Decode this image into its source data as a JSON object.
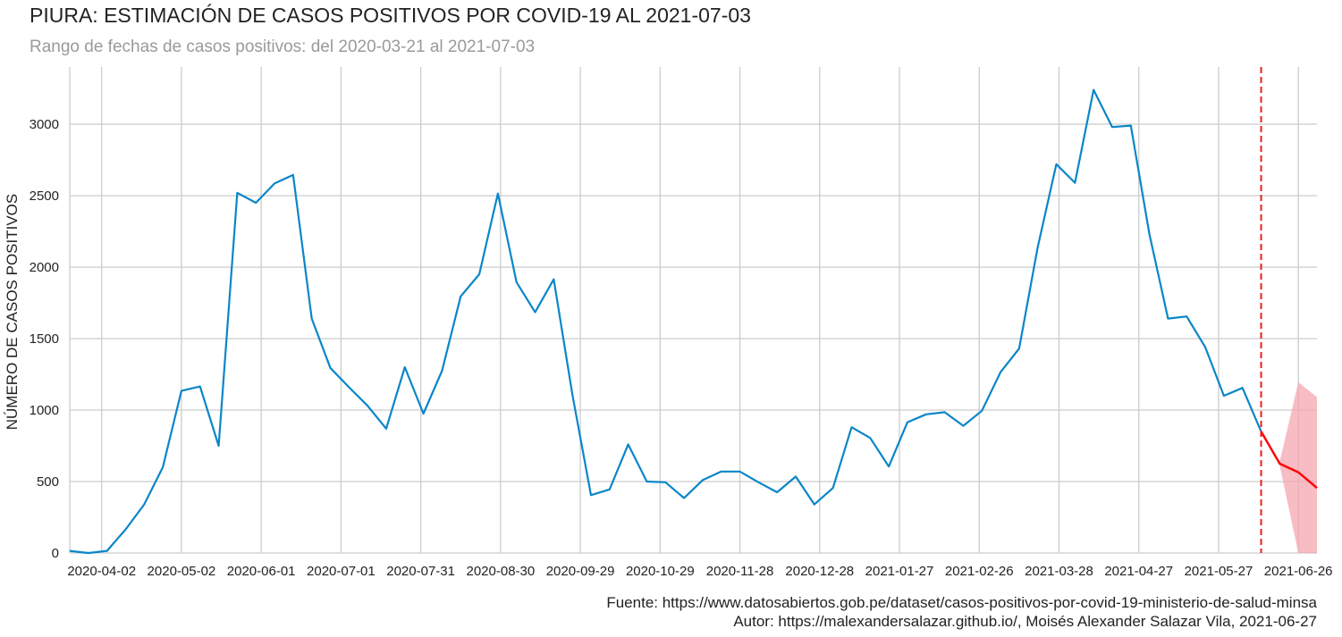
{
  "header": {
    "title": "PIURA: ESTIMACIÓN DE CASOS POSITIVOS POR COVID-19 AL 2021-07-03",
    "subtitle": "Rango de fechas de casos positivos: del 2020-03-21 al 2021-07-03"
  },
  "footer": {
    "source": "Fuente: https://www.datosabiertos.gob.pe/dataset/casos-positivos-por-covid-19-ministerio-de-salud-minsa",
    "author": "Autor: https://malexandersalazar.github.io/, Moisés Alexander Salazar Vila, 2021-06-27"
  },
  "chart_data": {
    "type": "line",
    "title": "PIURA: ESTIMACIÓN DE CASOS POSITIVOS POR COVID-19 AL 2021-07-03",
    "subtitle": "Rango de fechas de casos positivos: del 2020-03-21 al 2021-07-03",
    "xlabel": "",
    "ylabel": "NÚMERO DE CASOS POSITIVOS",
    "xlim": [
      "2020-03-21",
      "2021-07-03"
    ],
    "ylim": [
      0,
      3400
    ],
    "yticks": [
      0,
      500,
      1000,
      1500,
      2000,
      2500,
      3000
    ],
    "xticks": [
      "2020-04-02",
      "2020-05-02",
      "2020-06-01",
      "2020-07-01",
      "2020-07-31",
      "2020-08-30",
      "2020-09-29",
      "2020-10-29",
      "2020-11-28",
      "2020-12-28",
      "2021-01-27",
      "2021-02-26",
      "2021-03-28",
      "2021-04-27",
      "2021-05-27",
      "2021-06-26"
    ],
    "grid": true,
    "legend": "none",
    "colors": {
      "observed": "#0a86c8",
      "forecast": "#ff0000",
      "band": "#f4a6b0",
      "cutoff": "#e8201c",
      "grid": "#cccccc"
    },
    "series": [
      {
        "x": [
          "2020-03-21",
          "2020-03-28",
          "2020-04-04",
          "2020-04-11",
          "2020-04-18",
          "2020-04-25",
          "2020-05-02",
          "2020-05-09",
          "2020-05-16",
          "2020-05-23",
          "2020-05-30",
          "2020-06-06",
          "2020-06-13",
          "2020-06-20",
          "2020-06-27",
          "2020-07-04",
          "2020-07-11",
          "2020-07-18",
          "2020-07-25",
          "2020-08-01",
          "2020-08-08",
          "2020-08-15",
          "2020-08-22",
          "2020-08-29",
          "2020-09-05",
          "2020-09-12",
          "2020-09-19",
          "2020-09-26",
          "2020-10-03",
          "2020-10-10",
          "2020-10-17",
          "2020-10-24",
          "2020-10-31",
          "2020-11-07",
          "2020-11-14",
          "2020-11-21",
          "2020-11-28",
          "2020-12-05",
          "2020-12-12",
          "2020-12-19",
          "2020-12-26",
          "2021-01-02",
          "2021-01-09",
          "2021-01-16",
          "2021-01-23",
          "2021-01-30",
          "2021-02-06",
          "2021-02-13",
          "2021-02-20",
          "2021-02-27",
          "2021-03-06",
          "2021-03-13",
          "2021-03-20",
          "2021-03-27",
          "2021-04-03",
          "2021-04-10",
          "2021-04-17",
          "2021-04-24",
          "2021-05-01",
          "2021-05-08",
          "2021-05-15",
          "2021-05-22",
          "2021-05-29",
          "2021-06-05",
          "2021-06-12"
        ],
        "values": [
          15,
          0,
          15,
          165,
          340,
          600,
          1135,
          1165,
          750,
          2520,
          2450,
          2585,
          2645,
          1640,
          1295,
          1160,
          1030,
          870,
          1300,
          975,
          1275,
          1795,
          1950,
          2515,
          1895,
          1685,
          1915,
          1110,
          405,
          445,
          760,
          500,
          495,
          385,
          510,
          570,
          570,
          495,
          425,
          535,
          340,
          455,
          880,
          805,
          605,
          915,
          970,
          985,
          890,
          995,
          1265,
          1430,
          2140,
          2720,
          2590,
          3240,
          2980,
          2990,
          2230,
          1640,
          1655,
          1440,
          1100,
          1155,
          850
        ]
      },
      {
        "x": [
          "2021-06-12",
          "2021-06-19",
          "2021-06-26",
          "2021-07-03"
        ],
        "values": [
          850,
          625,
          565,
          455
        ],
        "band_lower": [
          850,
          610,
          0,
          0
        ],
        "band_upper": [
          850,
          640,
          1195,
          1090
        ]
      }
    ],
    "annotations": [
      {
        "type": "vline",
        "x": "2021-06-12",
        "style": "dashed"
      }
    ]
  }
}
